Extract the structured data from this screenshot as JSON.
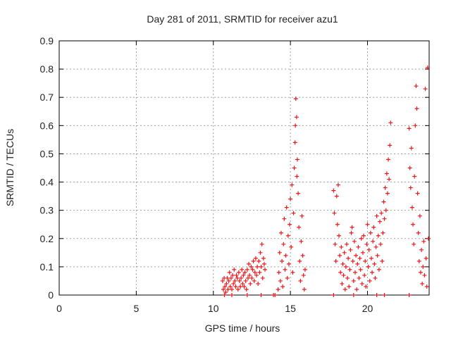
{
  "chart_data": {
    "type": "scatter",
    "title": "Day 281 of 2011, SRMTID for receiver azu1",
    "xlabel": "GPS time / hours",
    "ylabel": "SRMTID / TECUs",
    "xlim": [
      0,
      24
    ],
    "ylim": [
      0,
      0.9
    ],
    "xticks": [
      0,
      5,
      10,
      15,
      20
    ],
    "xtick_labels": [
      "0",
      "5",
      "10",
      "15",
      "20"
    ],
    "yticks": [
      0,
      0.1,
      0.2,
      0.3,
      0.4,
      0.5,
      0.6,
      0.7,
      0.8,
      0.9
    ],
    "ytick_labels": [
      "0",
      "0.1",
      "0.2",
      "0.3",
      "0.4",
      "0.5",
      "0.6",
      "0.7",
      "0.8",
      "0.9"
    ],
    "grid": true,
    "marker": "plus",
    "color": "#e41a1c",
    "series": [
      {
        "name": "SRMTID",
        "points": [
          [
            10.6,
            0.05
          ],
          [
            10.65,
            0.02
          ],
          [
            10.7,
            0.06
          ],
          [
            10.75,
            0.03
          ],
          [
            10.8,
            0.01
          ],
          [
            10.85,
            0.04
          ],
          [
            10.9,
            0.06
          ],
          [
            10.95,
            0.02
          ],
          [
            11.0,
            0.05
          ],
          [
            11.05,
            0.08
          ],
          [
            11.1,
            0.03
          ],
          [
            11.15,
            0.06
          ],
          [
            11.2,
            0.02
          ],
          [
            11.25,
            0.07
          ],
          [
            11.3,
            0.04
          ],
          [
            11.35,
            0.09
          ],
          [
            11.4,
            0.05
          ],
          [
            11.45,
            0.03
          ],
          [
            11.5,
            0.07
          ],
          [
            11.55,
            0.06
          ],
          [
            11.6,
            0.02
          ],
          [
            11.65,
            0.08
          ],
          [
            11.7,
            0.05
          ],
          [
            11.75,
            0.03
          ],
          [
            11.8,
            0.06
          ],
          [
            11.85,
            0.09
          ],
          [
            11.9,
            0.04
          ],
          [
            11.95,
            0.07
          ],
          [
            12.0,
            0.03
          ],
          [
            12.05,
            0.08
          ],
          [
            12.1,
            0.05
          ],
          [
            12.15,
            0.02
          ],
          [
            12.2,
            0.09
          ],
          [
            12.25,
            0.06
          ],
          [
            12.3,
            0.11
          ],
          [
            12.35,
            0.07
          ],
          [
            12.4,
            0.04
          ],
          [
            12.45,
            0.1
          ],
          [
            12.5,
            0.06
          ],
          [
            12.55,
            0.09
          ],
          [
            12.6,
            0.12
          ],
          [
            12.65,
            0.05
          ],
          [
            12.7,
            0.08
          ],
          [
            12.75,
            0.13
          ],
          [
            12.8,
            0.07
          ],
          [
            12.85,
            0.1
          ],
          [
            12.9,
            0.04
          ],
          [
            12.95,
            0.12
          ],
          [
            13.0,
            0.08
          ],
          [
            13.05,
            0.15
          ],
          [
            13.1,
            0.1
          ],
          [
            13.15,
            0.18
          ],
          [
            13.2,
            0.06
          ],
          [
            13.25,
            0.13
          ],
          [
            13.3,
            0.11
          ],
          [
            13.35,
            0.09
          ],
          [
            10.72,
            0.0
          ],
          [
            11.2,
            0.0
          ],
          [
            12.2,
            0.0
          ],
          [
            13.1,
            0.0
          ],
          [
            13.9,
            0.0
          ],
          [
            14.0,
            0.0
          ],
          [
            17.8,
            0.0
          ],
          [
            19.1,
            0.0
          ],
          [
            20.6,
            0.0
          ],
          [
            21.1,
            0.0
          ],
          [
            22.7,
            0.0
          ],
          [
            14.2,
            0.02
          ],
          [
            14.25,
            0.08
          ],
          [
            14.3,
            0.15
          ],
          [
            14.35,
            0.05
          ],
          [
            14.4,
            0.22
          ],
          [
            14.45,
            0.12
          ],
          [
            14.5,
            0.03
          ],
          [
            14.55,
            0.18
          ],
          [
            14.6,
            0.27
          ],
          [
            14.65,
            0.09
          ],
          [
            14.7,
            0.14
          ],
          [
            14.75,
            0.31
          ],
          [
            14.8,
            0.06
          ],
          [
            14.85,
            0.21
          ],
          [
            14.9,
            0.11
          ],
          [
            14.95,
            0.25
          ],
          [
            15.0,
            0.34
          ],
          [
            15.05,
            0.17
          ],
          [
            15.1,
            0.39
          ],
          [
            15.15,
            0.08
          ],
          [
            15.2,
            0.29
          ],
          [
            15.25,
            0.45
          ],
          [
            15.3,
            0.54
          ],
          [
            15.32,
            0.6
          ],
          [
            15.35,
            0.695
          ],
          [
            15.4,
            0.63
          ],
          [
            15.42,
            0.42
          ],
          [
            15.45,
            0.48
          ],
          [
            15.5,
            0.36
          ],
          [
            15.55,
            0.24
          ],
          [
            15.6,
            0.12
          ],
          [
            15.65,
            0.05
          ],
          [
            15.7,
            0.19
          ],
          [
            15.75,
            0.28
          ],
          [
            15.8,
            0.14
          ],
          [
            15.85,
            0.07
          ],
          [
            15.9,
            0.02
          ],
          [
            15.95,
            0.09
          ],
          [
            17.8,
            0.37
          ],
          [
            17.85,
            0.29
          ],
          [
            17.9,
            0.18
          ],
          [
            17.95,
            0.12
          ],
          [
            18.0,
            0.35
          ],
          [
            18.05,
            0.25
          ],
          [
            18.1,
            0.39
          ],
          [
            18.15,
            0.21
          ],
          [
            18.2,
            0.14
          ],
          [
            18.25,
            0.08
          ],
          [
            18.3,
            0.17
          ],
          [
            18.35,
            0.04
          ],
          [
            18.4,
            0.11
          ],
          [
            18.45,
            0.07
          ],
          [
            18.5,
            0.15
          ],
          [
            18.55,
            0.02
          ],
          [
            18.6,
            0.1
          ],
          [
            18.65,
            0.18
          ],
          [
            18.7,
            0.06
          ],
          [
            18.75,
            0.13
          ],
          [
            18.8,
            0.03
          ],
          [
            18.85,
            0.09
          ],
          [
            18.9,
            0.16
          ],
          [
            18.95,
            0.22
          ],
          [
            19.0,
            0.24
          ],
          [
            19.05,
            0.12
          ],
          [
            19.1,
            0.05
          ],
          [
            19.15,
            0.19
          ],
          [
            19.2,
            0.08
          ],
          [
            19.25,
            0.14
          ],
          [
            19.3,
            0.02
          ],
          [
            19.35,
            0.11
          ],
          [
            19.4,
            0.17
          ],
          [
            19.45,
            0.06
          ],
          [
            19.5,
            0.13
          ],
          [
            19.55,
            0.09
          ],
          [
            19.6,
            0.2
          ],
          [
            19.65,
            0.04
          ],
          [
            19.7,
            0.15
          ],
          [
            19.75,
            0.21
          ],
          [
            19.8,
            0.07
          ],
          [
            19.85,
            0.12
          ],
          [
            19.9,
            0.03
          ],
          [
            19.95,
            0.18
          ],
          [
            20.0,
            0.25
          ],
          [
            20.05,
            0.1
          ],
          [
            20.1,
            0.16
          ],
          [
            20.15,
            0.05
          ],
          [
            20.2,
            0.22
          ],
          [
            20.25,
            0.13
          ],
          [
            20.3,
            0.08
          ],
          [
            20.35,
            0.19
          ],
          [
            20.4,
            0.24
          ],
          [
            20.45,
            0.11
          ],
          [
            20.5,
            0.06
          ],
          [
            20.55,
            0.17
          ],
          [
            20.6,
            0.28
          ],
          [
            20.65,
            0.14
          ],
          [
            20.7,
            0.21
          ],
          [
            20.75,
            0.09
          ],
          [
            20.8,
            0.26
          ],
          [
            20.85,
            0.18
          ],
          [
            20.9,
            0.29
          ],
          [
            20.95,
            0.12
          ],
          [
            21.0,
            0.22
          ],
          [
            21.05,
            0.33
          ],
          [
            21.1,
            0.27
          ],
          [
            21.15,
            0.38
          ],
          [
            21.2,
            0.3
          ],
          [
            21.25,
            0.43
          ],
          [
            21.3,
            0.36
          ],
          [
            21.35,
            0.48
          ],
          [
            21.4,
            0.41
          ],
          [
            21.45,
            0.53
          ],
          [
            21.5,
            0.61
          ],
          [
            22.7,
            0.59
          ],
          [
            22.75,
            0.45
          ],
          [
            22.8,
            0.38
          ],
          [
            22.85,
            0.52
          ],
          [
            22.9,
            0.31
          ],
          [
            22.95,
            0.25
          ],
          [
            23.0,
            0.18
          ],
          [
            23.05,
            0.42
          ],
          [
            23.1,
            0.6
          ],
          [
            23.15,
            0.74
          ],
          [
            23.2,
            0.66
          ],
          [
            23.25,
            0.36
          ],
          [
            23.3,
            0.22
          ],
          [
            23.35,
            0.12
          ],
          [
            23.4,
            0.28
          ],
          [
            23.45,
            0.08
          ],
          [
            23.5,
            0.16
          ],
          [
            23.55,
            0.04
          ],
          [
            23.6,
            0.1
          ],
          [
            23.65,
            0.19
          ],
          [
            23.7,
            0.07
          ],
          [
            23.75,
            0.73
          ],
          [
            23.8,
            0.13
          ],
          [
            23.85,
            0.03
          ],
          [
            23.9,
            0.805
          ],
          [
            23.95,
            0.2
          ]
        ]
      }
    ]
  }
}
